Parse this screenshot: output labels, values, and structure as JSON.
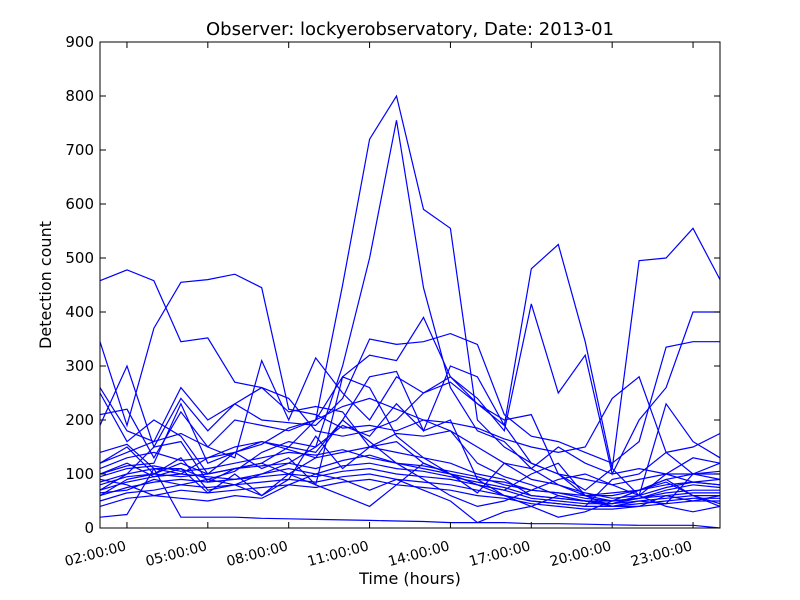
{
  "chart_data": {
    "type": "line",
    "title": "Observer: lockyerobservatory, Date: 2013-01",
    "xlabel": "Time (hours)",
    "ylabel": "Detection count",
    "ylim": [
      0,
      900
    ],
    "yticks": [
      0,
      100,
      200,
      300,
      400,
      500,
      600,
      700,
      800,
      900
    ],
    "xlim": [
      1,
      24
    ],
    "xticks": [
      2,
      5,
      8,
      11,
      14,
      17,
      20,
      23
    ],
    "xtick_labels": [
      "02:00:00",
      "05:00:00",
      "08:00:00",
      "11:00:00",
      "14:00:00",
      "17:00:00",
      "20:00:00",
      "23:00:00"
    ],
    "grid": false,
    "legend": "none",
    "line_color": "#0000ff",
    "x": [
      1,
      2,
      3,
      4,
      5,
      6,
      7,
      8,
      9,
      10,
      11,
      12,
      13,
      14,
      15,
      16,
      17,
      18,
      19,
      20,
      21,
      22,
      23,
      24
    ],
    "series": [
      {
        "values": [
          458,
          478,
          458,
          345,
          352,
          270,
          260,
          215,
          225,
          215,
          150,
          140,
          130,
          120,
          100,
          90,
          60,
          55,
          50,
          45,
          55,
          70,
          80,
          75
        ]
      },
      {
        "values": [
          60,
          90,
          100,
          120,
          100,
          110,
          120,
          150,
          200,
          450,
          720,
          800,
          590,
          555,
          200,
          150,
          120,
          100,
          90,
          80,
          90,
          100,
          100,
          105
        ]
      },
      {
        "values": [
          70,
          100,
          110,
          110,
          90,
          80,
          100,
          120,
          150,
          300,
          500,
          755,
          445,
          260,
          180,
          160,
          110,
          80,
          60,
          60,
          70,
          90,
          100,
          100
        ]
      },
      {
        "values": [
          190,
          300,
          150,
          240,
          180,
          230,
          260,
          240,
          180,
          170,
          180,
          200,
          250,
          280,
          230,
          190,
          480,
          525,
          345,
          110,
          495,
          500,
          555,
          460
        ]
      },
      {
        "values": [
          345,
          190,
          370,
          455,
          460,
          470,
          445,
          220,
          210,
          185,
          190,
          180,
          200,
          195,
          185,
          165,
          150,
          140,
          150,
          240,
          280,
          140,
          150,
          175
        ]
      },
      {
        "values": [
          100,
          115,
          120,
          230,
          120,
          140,
          155,
          185,
          200,
          280,
          320,
          310,
          390,
          280,
          240,
          180,
          415,
          250,
          320,
          100,
          200,
          260,
          400,
          400
        ]
      },
      {
        "values": [
          260,
          180,
          160,
          260,
          200,
          230,
          200,
          195,
          190,
          240,
          350,
          340,
          345,
          360,
          340,
          210,
          170,
          160,
          140,
          120,
          160,
          335,
          345,
          345
        ]
      },
      {
        "values": [
          120,
          140,
          160,
          175,
          150,
          130,
          310,
          200,
          315,
          250,
          200,
          280,
          250,
          270,
          230,
          200,
          210,
          100,
          60,
          40,
          40,
          60,
          50,
          60
        ]
      },
      {
        "values": [
          110,
          130,
          140,
          125,
          130,
          150,
          160,
          145,
          130,
          140,
          150,
          175,
          170,
          180,
          120,
          95,
          80,
          60,
          50,
          45,
          60,
          75,
          85,
          80
        ]
      },
      {
        "values": [
          95,
          110,
          115,
          105,
          110,
          120,
          130,
          140,
          135,
          145,
          130,
          120,
          110,
          100,
          90,
          85,
          70,
          65,
          60,
          65,
          70,
          80,
          85,
          90
        ]
      },
      {
        "values": [
          80,
          95,
          100,
          95,
          100,
          110,
          115,
          120,
          110,
          125,
          135,
          120,
          115,
          105,
          95,
          80,
          70,
          65,
          55,
          50,
          55,
          65,
          70,
          70
        ]
      },
      {
        "values": [
          70,
          85,
          95,
          100,
          95,
          90,
          100,
          110,
          100,
          115,
          120,
          110,
          105,
          95,
          85,
          75,
          60,
          55,
          50,
          50,
          55,
          60,
          65,
          65
        ]
      },
      {
        "values": [
          60,
          75,
          85,
          90,
          85,
          90,
          95,
          100,
          95,
          105,
          110,
          100,
          95,
          90,
          80,
          70,
          55,
          50,
          45,
          45,
          50,
          55,
          60,
          60
        ]
      },
      {
        "values": [
          50,
          65,
          70,
          80,
          75,
          80,
          85,
          90,
          85,
          95,
          100,
          90,
          85,
          80,
          70,
          60,
          50,
          45,
          40,
          40,
          45,
          50,
          55,
          55
        ]
      },
      {
        "values": [
          40,
          55,
          60,
          70,
          65,
          70,
          75,
          80,
          75,
          85,
          90,
          80,
          75,
          70,
          60,
          55,
          45,
          40,
          35,
          35,
          40,
          45,
          50,
          50
        ]
      },
      {
        "values": [
          20,
          25,
          110,
          20,
          20,
          20,
          18,
          17,
          16,
          15,
          14,
          13,
          12,
          10,
          10,
          10,
          8,
          8,
          7,
          6,
          5,
          5,
          5,
          0
        ]
      },
      {
        "values": [
          140,
          155,
          110,
          100,
          130,
          140,
          160,
          150,
          140,
          200,
          280,
          290,
          180,
          300,
          280,
          190,
          120,
          100,
          70,
          110,
          60,
          230,
          160,
          130
        ]
      },
      {
        "values": [
          210,
          220,
          130,
          215,
          150,
          200,
          190,
          180,
          200,
          225,
          240,
          220,
          200,
          180,
          150,
          120,
          90,
          80,
          65,
          55,
          60,
          100,
          130,
          120
        ]
      },
      {
        "values": [
          250,
          160,
          200,
          170,
          100,
          140,
          110,
          130,
          80,
          280,
          260,
          170,
          130,
          100,
          80,
          60,
          50,
          45,
          40,
          90,
          100,
          140,
          100,
          90
        ]
      },
      {
        "values": [
          120,
          150,
          100,
          130,
          70,
          80,
          60,
          100,
          130,
          200,
          160,
          120,
          90,
          60,
          40,
          50,
          70,
          90,
          100,
          80,
          60,
          40,
          30,
          40
        ]
      },
      {
        "values": [
          90,
          80,
          60,
          55,
          50,
          60,
          55,
          80,
          100,
          90,
          70,
          90,
          70,
          50,
          10,
          30,
          40,
          60,
          50,
          40,
          50,
          45,
          100,
          120
        ]
      },
      {
        "values": [
          100,
          120,
          95,
          110,
          65,
          100,
          60,
          90,
          170,
          110,
          150,
          160,
          120,
          100,
          65,
          120,
          110,
          150,
          120,
          100,
          110,
          100,
          85,
          80
        ]
      },
      {
        "values": [
          85,
          100,
          150,
          160,
          85,
          110,
          120,
          100,
          80,
          60,
          40,
          80,
          120,
          100,
          80,
          70,
          100,
          120,
          60,
          50,
          70,
          90,
          60,
          40
        ]
      },
      {
        "values": [
          65,
          70,
          90,
          80,
          90,
          105,
          140,
          160,
          150,
          190,
          170,
          230,
          180,
          200,
          90,
          60,
          40,
          20,
          30,
          50,
          70,
          85,
          60,
          45
        ]
      }
    ]
  }
}
